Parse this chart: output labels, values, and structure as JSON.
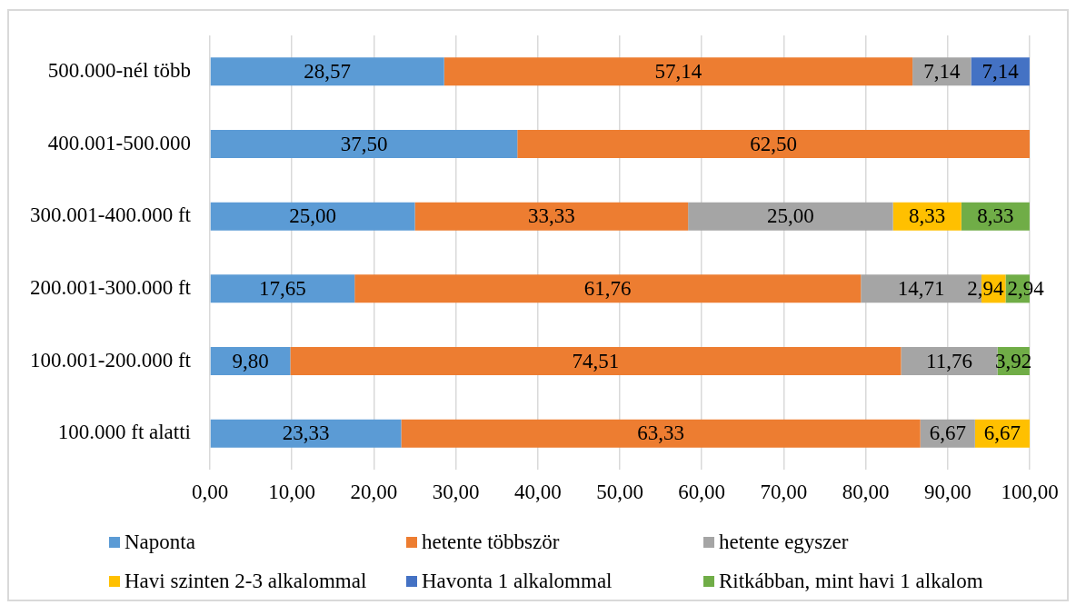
{
  "chart_data": {
    "type": "bar",
    "orientation": "horizontal",
    "stacked": true,
    "categories": [
      "500.000-nél több",
      "400.001-500.000",
      "300.001-400.000 ft",
      "200.001-300.000 ft",
      "100.001-200.000 ft",
      "100.000 ft alatti"
    ],
    "series": [
      {
        "name": "Naponta",
        "color": "#5b9bd5",
        "values": [
          28.57,
          37.5,
          25.0,
          17.65,
          9.8,
          23.33
        ],
        "value_labels": [
          "28,57",
          "37,50",
          "25,00",
          "17,65",
          "9,80",
          "23,33"
        ]
      },
      {
        "name": "hetente többször",
        "color": "#ed7d31",
        "values": [
          57.14,
          62.5,
          33.33,
          61.76,
          74.51,
          63.33
        ],
        "value_labels": [
          "57,14",
          "62,50",
          "33,33",
          "61,76",
          "74,51",
          "63,33"
        ]
      },
      {
        "name": "hetente egyszer",
        "color": "#a5a5a5",
        "values": [
          7.14,
          null,
          25.0,
          14.71,
          11.76,
          6.67
        ],
        "value_labels": [
          "7,14",
          null,
          "25,00",
          "14,71",
          "11,76",
          "6,67"
        ]
      },
      {
        "name": "Havi szinten 2-3 alkalommal",
        "color": "#ffc000",
        "values": [
          null,
          null,
          8.33,
          2.94,
          null,
          6.67
        ],
        "value_labels": [
          null,
          null,
          "8,33",
          "2,94",
          null,
          "6,67"
        ]
      },
      {
        "name": "Havonta 1 alkalommal",
        "color": "#4472c4",
        "values": [
          7.14,
          null,
          null,
          null,
          null,
          null
        ],
        "value_labels": [
          "7,14",
          null,
          null,
          null,
          null,
          null
        ]
      },
      {
        "name": "Ritkábban, mint havi 1 alkalom",
        "color": "#70ad47",
        "values": [
          null,
          null,
          8.33,
          2.94,
          3.92,
          null
        ],
        "value_labels": [
          null,
          null,
          "8,33",
          "2,94",
          "3,92",
          null
        ]
      }
    ],
    "xlim": [
      0,
      100
    ],
    "xticks": [
      {
        "value": 0,
        "label": "0,00"
      },
      {
        "value": 10,
        "label": "10,00"
      },
      {
        "value": 20,
        "label": "20,00"
      },
      {
        "value": 30,
        "label": "30,00"
      },
      {
        "value": 40,
        "label": "40,00"
      },
      {
        "value": 50,
        "label": "50,00"
      },
      {
        "value": 60,
        "label": "60,00"
      },
      {
        "value": 70,
        "label": "70,00"
      },
      {
        "value": 80,
        "label": "80,00"
      },
      {
        "value": 90,
        "label": "90,00"
      },
      {
        "value": 100,
        "label": "100,00"
      }
    ],
    "grid": "x",
    "legend": "bottom"
  }
}
